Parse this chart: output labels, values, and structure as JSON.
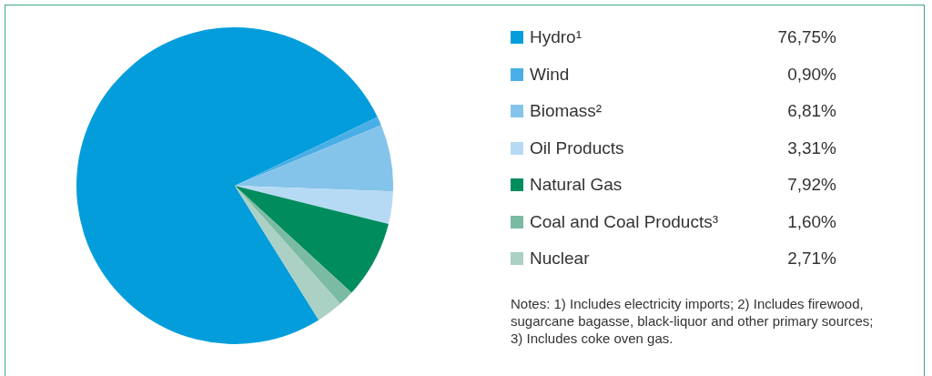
{
  "chart_data": {
    "type": "pie",
    "categories": [
      "Hydro¹",
      "Wind",
      "Biomass²",
      "Oil Products",
      "Natural Gas",
      "Coal and Coal Products³",
      "Nuclear"
    ],
    "values": [
      76.75,
      0.9,
      6.81,
      3.31,
      7.92,
      1.6,
      2.71
    ],
    "colors": [
      "#039ddc",
      "#4aaee6",
      "#85c4ea",
      "#b6daf3",
      "#018c5d",
      "#7cbba3",
      "#abd0c4"
    ],
    "value_labels": [
      "76,75%",
      "0,90%",
      "6,81%",
      "3,31%",
      "7,92%",
      "1,60%",
      "2,71%"
    ],
    "legend": "right",
    "annotations": [
      "Notes: 1) Includes electricity imports; 2) Includes firewood, sugarcane bagasse, black-liquor and other primary sources; 3) Includes coke oven gas."
    ]
  }
}
